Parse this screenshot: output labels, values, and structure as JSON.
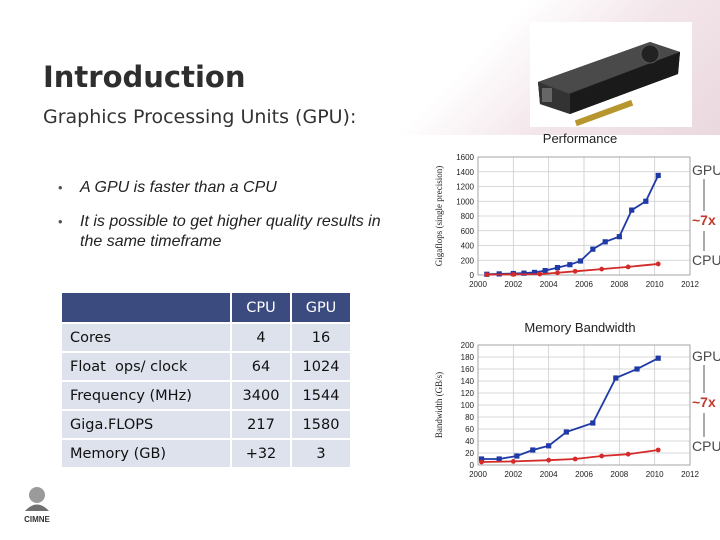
{
  "slide": {
    "title": "Introduction",
    "subtitle": "Graphics Processing Units (GPU):",
    "bullets": [
      "A GPU is faster than a CPU",
      "It is possible to get higher quality results in the same timeframe"
    ]
  },
  "table": {
    "headers": [
      "",
      "CPU",
      "GPU"
    ],
    "rows": [
      {
        "label": "Cores",
        "cpu": "4",
        "gpu": "16"
      },
      {
        "label": "Float  ops/ clock",
        "cpu": "64",
        "gpu": "1024"
      },
      {
        "label": "Frequency (MHz)",
        "cpu": "3400",
        "gpu": "1544"
      },
      {
        "label": "Giga.FLOPS",
        "cpu": "217",
        "gpu": "1580"
      },
      {
        "label": "Memory (GB)",
        "cpu": "+32",
        "gpu": "3"
      }
    ]
  },
  "logo": {
    "text": "CIMNE"
  },
  "colors": {
    "gpu_series": "#1f3aa6",
    "cpu_series": "#d42a2a",
    "tag": "#c0392b",
    "table_header": "#3b4a7f",
    "table_row": "#dde2ed"
  },
  "chart_data": [
    {
      "type": "line",
      "title": "Performance",
      "ylabel": "Gigaflops (single precision)",
      "xlabel": "",
      "x_ticks": [
        "2000",
        "2002",
        "2004",
        "2006",
        "2008",
        "2010",
        "2012"
      ],
      "y_ticks": [
        "0",
        "200",
        "400",
        "600",
        "800",
        "1000",
        "1200",
        "1400",
        "1600"
      ],
      "xlim": [
        2000,
        2012
      ],
      "ylim": [
        0,
        1600
      ],
      "series": [
        {
          "name": "GPU",
          "x": [
            2000.5,
            2001.2,
            2002,
            2002.6,
            2003.2,
            2003.8,
            2004.5,
            2005.2,
            2005.8,
            2006.5,
            2007.2,
            2008,
            2008.7,
            2009.5,
            2010.2
          ],
          "y": [
            10,
            15,
            20,
            25,
            35,
            60,
            100,
            140,
            190,
            350,
            450,
            520,
            880,
            1000,
            1350
          ]
        },
        {
          "name": "CPU",
          "x": [
            2000.5,
            2002,
            2003.5,
            2004.5,
            2005.5,
            2007,
            2008.5,
            2010.2
          ],
          "y": [
            5,
            8,
            12,
            30,
            50,
            80,
            110,
            150
          ]
        }
      ],
      "annotations": [
        "GPU",
        "~7x",
        "CPU"
      ]
    },
    {
      "type": "line",
      "title": "Memory Bandwidth",
      "ylabel": "Bandwidth (GB/s)",
      "xlabel": "",
      "x_ticks": [
        "2000",
        "2002",
        "2004",
        "2006",
        "2008",
        "2010",
        "2012"
      ],
      "y_ticks": [
        "0",
        "20",
        "40",
        "60",
        "80",
        "100",
        "120",
        "140",
        "160",
        "180",
        "200"
      ],
      "xlim": [
        2000,
        2012
      ],
      "ylim": [
        0,
        200
      ],
      "series": [
        {
          "name": "GPU",
          "x": [
            2000.2,
            2001.2,
            2002.2,
            2003.1,
            2004,
            2005,
            2006.5,
            2007.8,
            2009,
            2010.2
          ],
          "y": [
            10,
            10,
            15,
            25,
            32,
            55,
            70,
            145,
            160,
            178
          ]
        },
        {
          "name": "CPU",
          "x": [
            2000.2,
            2002,
            2004,
            2005.5,
            2007,
            2008.5,
            2010.2
          ],
          "y": [
            5,
            6,
            8,
            10,
            15,
            18,
            25
          ]
        }
      ],
      "annotations": [
        "GPU",
        "~7x",
        "CPU"
      ]
    }
  ]
}
